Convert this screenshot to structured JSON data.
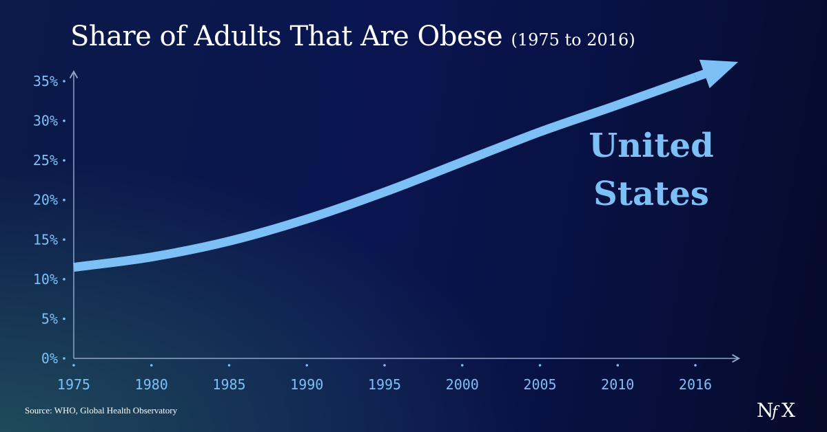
{
  "header": {
    "title": "Share of Adults That Are Obese",
    "subtitle": "(1975 to 2016)"
  },
  "footer": {
    "source": "Source: WHO, Global Health Observatory",
    "logo_text": "NfX"
  },
  "colors": {
    "line": "#7cc0f6",
    "axis": "#8fa3c8",
    "text": "#ffffff"
  },
  "chart_data": {
    "type": "line",
    "title": "Share of Adults That Are Obese",
    "subtitle": "(1975 to 2016)",
    "xlabel": "",
    "ylabel": "",
    "x_ticks": [
      "1975",
      "1980",
      "1985",
      "1990",
      "1995",
      "2000",
      "2005",
      "2010",
      "2016"
    ],
    "y_ticks": [
      "0%",
      "5%",
      "10%",
      "15%",
      "20%",
      "25%",
      "30%",
      "35%"
    ],
    "ylim": [
      0,
      35
    ],
    "grid": false,
    "series": [
      {
        "name": "United States",
        "x": [
          "1975",
          "1980",
          "1985",
          "1990",
          "1995",
          "2000",
          "2005",
          "2010",
          "2016"
        ],
        "y": [
          11.5,
          12.8,
          14.8,
          17.6,
          21.0,
          24.8,
          28.6,
          32.0,
          35.5
        ]
      }
    ],
    "series_label_lines": [
      "United",
      "States"
    ],
    "annotation": "arrow at end of line"
  }
}
